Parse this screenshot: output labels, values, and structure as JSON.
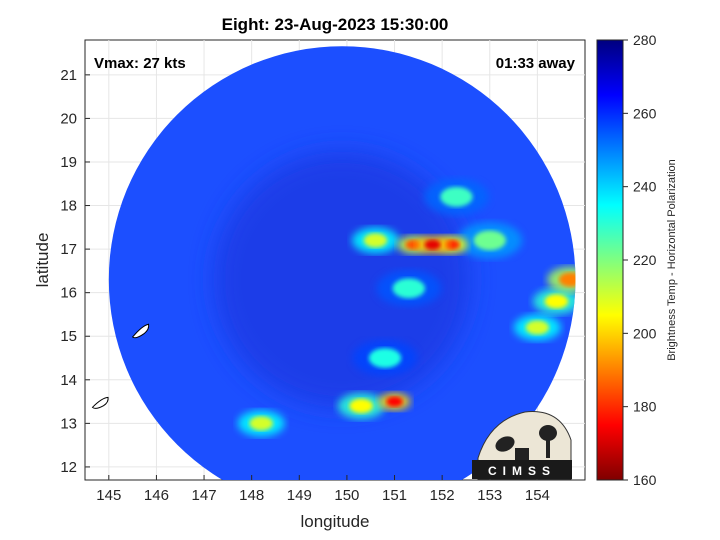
{
  "chart_data": {
    "type": "heatmap",
    "title": "Eight: 23-Aug-2023 15:30:00",
    "xlabel": "longitude",
    "ylabel": "latitude",
    "xlim": [
      144.5,
      155
    ],
    "ylim": [
      11.7,
      21.8
    ],
    "xticks": [
      145,
      146,
      147,
      148,
      149,
      150,
      151,
      152,
      153,
      154
    ],
    "yticks": [
      12,
      13,
      14,
      15,
      16,
      17,
      18,
      19,
      20,
      21
    ],
    "grid": true,
    "annotations": {
      "vmax": "Vmax: 27 kts",
      "time_away": "01:33 away"
    },
    "colorbar": {
      "label": "Brightness Temp - Horizontal Polarization",
      "range": [
        160,
        280
      ],
      "ticks": [
        160,
        180,
        200,
        220,
        240,
        260,
        280
      ],
      "colormap": "jet"
    },
    "swath": {
      "center_lon": 149.9,
      "center_lat": 16.3,
      "radius_deg": 4.9
    },
    "cold_features": [
      {
        "lon": 151.8,
        "lat": 17.1,
        "tb": 172
      },
      {
        "lon": 151.4,
        "lat": 17.1,
        "tb": 185
      },
      {
        "lon": 152.2,
        "lat": 17.1,
        "tb": 180
      },
      {
        "lon": 150.6,
        "lat": 17.2,
        "tb": 210
      },
      {
        "lon": 153.0,
        "lat": 17.2,
        "tb": 222
      },
      {
        "lon": 152.3,
        "lat": 18.2,
        "tb": 228
      },
      {
        "lon": 154.7,
        "lat": 16.3,
        "tb": 190
      },
      {
        "lon": 154.4,
        "lat": 15.8,
        "tb": 205
      },
      {
        "lon": 154.0,
        "lat": 15.2,
        "tb": 210
      },
      {
        "lon": 151.0,
        "lat": 13.5,
        "tb": 175
      },
      {
        "lon": 150.3,
        "lat": 13.4,
        "tb": 205
      },
      {
        "lon": 148.2,
        "lat": 13.0,
        "tb": 210
      },
      {
        "lon": 151.3,
        "lat": 16.1,
        "tb": 230
      },
      {
        "lon": 150.8,
        "lat": 14.5,
        "tb": 232
      }
    ],
    "logo_text": "CIMSS"
  }
}
